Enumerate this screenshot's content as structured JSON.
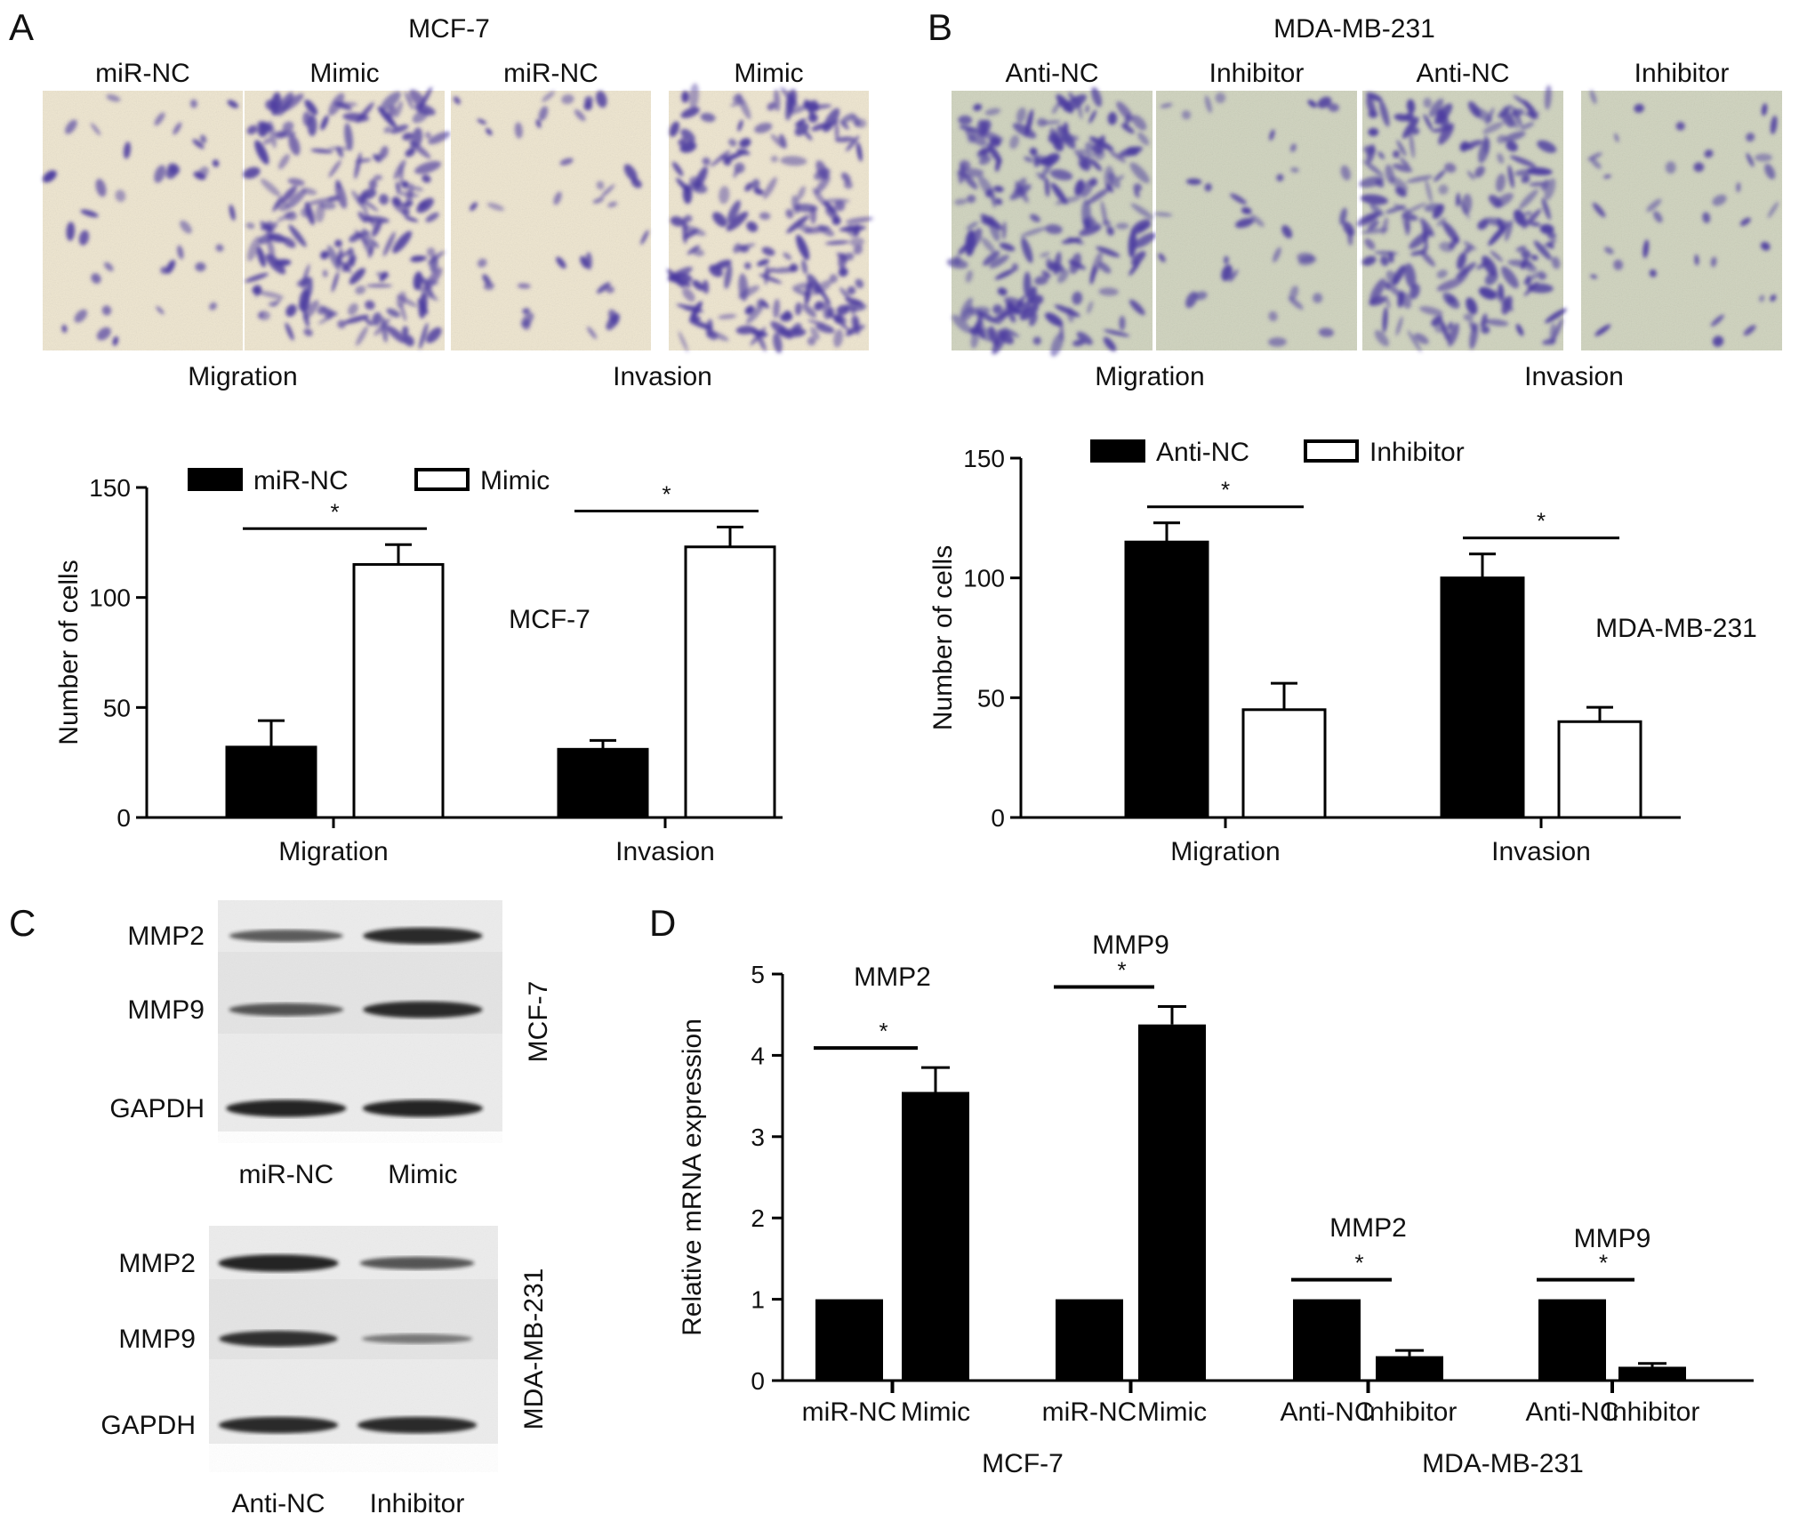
{
  "panel_a": {
    "letter": "A",
    "cell_line": "MCF-7",
    "images": [
      {
        "label": "miR-NC",
        "density": "low"
      },
      {
        "label": "Mimic",
        "density": "high"
      },
      {
        "label": "miR-NC",
        "density": "low"
      },
      {
        "label": "Mimic",
        "density": "high"
      }
    ],
    "group_labels": [
      "Migration",
      "Invasion"
    ]
  },
  "panel_b": {
    "letter": "B",
    "cell_line": "MDA-MB-231",
    "images": [
      {
        "label": "Anti-NC",
        "density": "high"
      },
      {
        "label": "Inhibitor",
        "density": "low"
      },
      {
        "label": "Anti-NC",
        "density": "high"
      },
      {
        "label": "Inhibitor",
        "density": "low"
      }
    ],
    "group_labels": [
      "Migration",
      "Invasion"
    ]
  },
  "panel_c": {
    "letter": "C",
    "blots": [
      {
        "cell_line": "MCF-7",
        "bands": [
          "MMP2",
          "MMP9",
          "GAPDH"
        ],
        "lanes": [
          "miR-NC",
          "Mimic"
        ],
        "intensity": [
          [
            0.55,
            0.9
          ],
          [
            0.6,
            0.9
          ],
          [
            0.95,
            0.95
          ]
        ]
      },
      {
        "cell_line": "MDA-MB-231",
        "bands": [
          "MMP2",
          "MMP9",
          "GAPDH"
        ],
        "lanes": [
          "Anti-NC",
          "Inhibitor"
        ],
        "intensity": [
          [
            0.95,
            0.6
          ],
          [
            0.85,
            0.35
          ],
          [
            0.9,
            0.9
          ]
        ]
      }
    ]
  },
  "panel_d": {
    "letter": "D"
  },
  "colors": {
    "bar_black": "#000000",
    "bar_white": "#ffffff",
    "stain": "#4a3aa0",
    "membrane_a": "#efe6cf",
    "membrane_b": "#cfd3bd"
  },
  "chart_data": [
    {
      "type": "bar",
      "panel": "A",
      "ylabel": "Number of cells",
      "ylim": [
        0,
        150
      ],
      "yticks": [
        0,
        50,
        100,
        150
      ],
      "categories": [
        "Migration",
        "Invasion"
      ],
      "annotation": "MCF-7",
      "significance": "*",
      "series": [
        {
          "name": "miR-NC",
          "fill": "black",
          "values": [
            32,
            31
          ],
          "errors": [
            12,
            4
          ]
        },
        {
          "name": "Mimic",
          "fill": "white",
          "values": [
            115,
            123
          ],
          "errors": [
            9,
            9
          ]
        }
      ]
    },
    {
      "type": "bar",
      "panel": "B",
      "ylabel": "Number of cells",
      "ylim": [
        0,
        150
      ],
      "yticks": [
        0,
        50,
        100,
        150
      ],
      "categories": [
        "Migration",
        "Invasion"
      ],
      "annotation": "MDA-MB-231",
      "significance": "*",
      "series": [
        {
          "name": "Anti-NC",
          "fill": "black",
          "values": [
            115,
            100
          ],
          "errors": [
            8,
            10
          ]
        },
        {
          "name": "Inhibitor",
          "fill": "white",
          "values": [
            45,
            40
          ],
          "errors": [
            11,
            6
          ]
        }
      ]
    },
    {
      "type": "bar",
      "panel": "D",
      "ylabel": "Relative mRNA expression",
      "ylim": [
        0,
        5
      ],
      "yticks": [
        0,
        1,
        2,
        3,
        4,
        5
      ],
      "significance": "*",
      "group_labels": [
        "MCF-7",
        "MDA-MB-231"
      ],
      "groups": [
        {
          "gene": "MMP2",
          "cell_line": "MCF-7",
          "categories": [
            "miR-NC",
            "Mimic"
          ],
          "values": [
            1.0,
            3.55
          ],
          "errors": [
            0,
            0.3
          ]
        },
        {
          "gene": "MMP9",
          "cell_line": "MCF-7",
          "categories": [
            "miR-NC",
            "Mimic"
          ],
          "values": [
            1.0,
            4.38
          ],
          "errors": [
            0,
            0.22
          ]
        },
        {
          "gene": "MMP2",
          "cell_line": "MDA-MB-231",
          "categories": [
            "Anti-NC",
            "Inhibitor"
          ],
          "values": [
            1.0,
            0.3
          ],
          "errors": [
            0,
            0.07
          ]
        },
        {
          "gene": "MMP9",
          "cell_line": "MDA-MB-231",
          "categories": [
            "Anti-NC",
            "Inhibitor"
          ],
          "values": [
            1.0,
            0.17
          ],
          "errors": [
            0,
            0.04
          ]
        }
      ]
    }
  ]
}
